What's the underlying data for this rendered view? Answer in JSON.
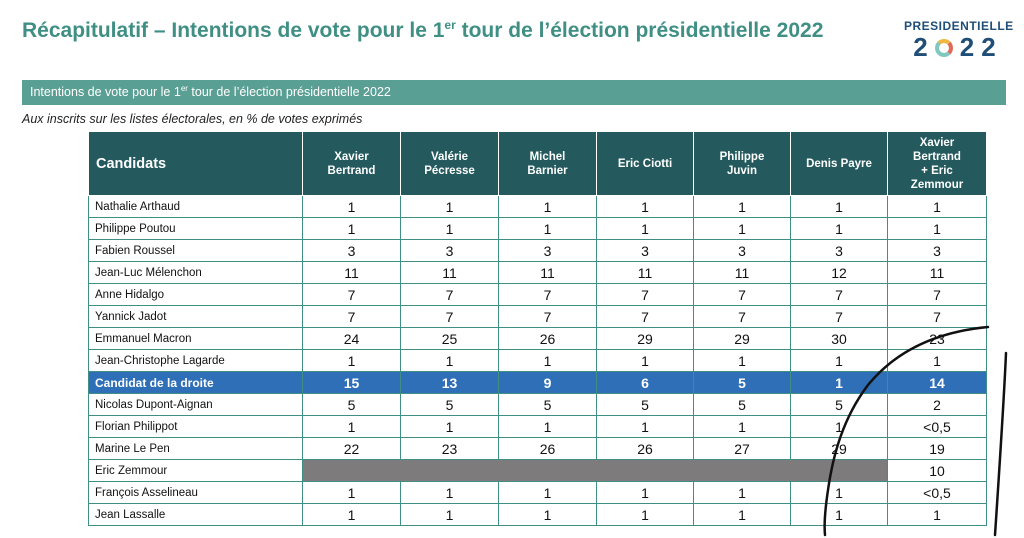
{
  "header": {
    "title_main": "Récapitulatif – Intentions de vote pour le 1",
    "title_sup": "er",
    "title_rest": " tour de l’élection présidentielle 2022"
  },
  "logo": {
    "top": "PRESIDENTIELLE",
    "year_start": "2",
    "year_end": "22"
  },
  "banner": {
    "text_main": "Intentions de vote pour le 1",
    "text_sup": "er",
    "text_rest": " tour de l’élection présidentielle 2022"
  },
  "subtitle": "Aux inscrits sur les listes électorales, en % de votes exprimés",
  "table": {
    "corner": "Candidats",
    "columns": [
      [
        "Xavier",
        "Bertrand"
      ],
      [
        "Valérie",
        "Pécresse"
      ],
      [
        "Michel",
        "Barnier"
      ],
      [
        "Eric Ciotti"
      ],
      [
        "Philippe",
        "Juvin"
      ],
      [
        "Denis Payre"
      ],
      [
        "Xavier",
        "Bertrand",
        "+ Eric",
        "Zemmour"
      ]
    ],
    "rows": [
      {
        "name": "Nathalie Arthaud",
        "values": [
          "1",
          "1",
          "1",
          "1",
          "1",
          "1",
          "1"
        ]
      },
      {
        "name": "Philippe Poutou",
        "values": [
          "1",
          "1",
          "1",
          "1",
          "1",
          "1",
          "1"
        ]
      },
      {
        "name": "Fabien Roussel",
        "values": [
          "3",
          "3",
          "3",
          "3",
          "3",
          "3",
          "3"
        ]
      },
      {
        "name": "Jean-Luc Mélenchon",
        "values": [
          "11",
          "11",
          "11",
          "11",
          "11",
          "12",
          "11"
        ]
      },
      {
        "name": "Anne Hidalgo",
        "values": [
          "7",
          "7",
          "7",
          "7",
          "7",
          "7",
          "7"
        ]
      },
      {
        "name": "Yannick Jadot",
        "values": [
          "7",
          "7",
          "7",
          "7",
          "7",
          "7",
          "7"
        ]
      },
      {
        "name": "Emmanuel Macron",
        "values": [
          "24",
          "25",
          "26",
          "29",
          "29",
          "30",
          "23"
        ]
      },
      {
        "name": "Jean-Christophe Lagarde",
        "values": [
          "1",
          "1",
          "1",
          "1",
          "1",
          "1",
          "1"
        ]
      },
      {
        "name": "Candidat de la droite",
        "values": [
          "15",
          "13",
          "9",
          "6",
          "5",
          "1",
          "14"
        ],
        "highlight": true
      },
      {
        "name": "Nicolas Dupont-Aignan",
        "values": [
          "5",
          "5",
          "5",
          "5",
          "5",
          "5",
          "2"
        ]
      },
      {
        "name": "Florian Philippot",
        "values": [
          "1",
          "1",
          "1",
          "1",
          "1",
          "1",
          "<0,5"
        ]
      },
      {
        "name": "Marine Le Pen",
        "values": [
          "22",
          "23",
          "26",
          "26",
          "27",
          "29",
          "19"
        ]
      },
      {
        "name": "Eric Zemmour",
        "values": [
          "",
          "",
          "",
          "",
          "",
          "",
          "10"
        ],
        "grayed_columns": 6
      },
      {
        "name": "François Asselineau",
        "values": [
          "1",
          "1",
          "1",
          "1",
          "1",
          "1",
          "<0,5"
        ]
      },
      {
        "name": "Jean Lassalle",
        "values": [
          "1",
          "1",
          "1",
          "1",
          "1",
          "1",
          "1"
        ]
      }
    ]
  },
  "colors": {
    "title": "#3f8f84",
    "banner": "#5a9f94",
    "table_header": "#245a5e",
    "highlight_row": "#2f6fb7",
    "grayed_cell": "#7d7b7b",
    "logo": "#1f4e79"
  }
}
